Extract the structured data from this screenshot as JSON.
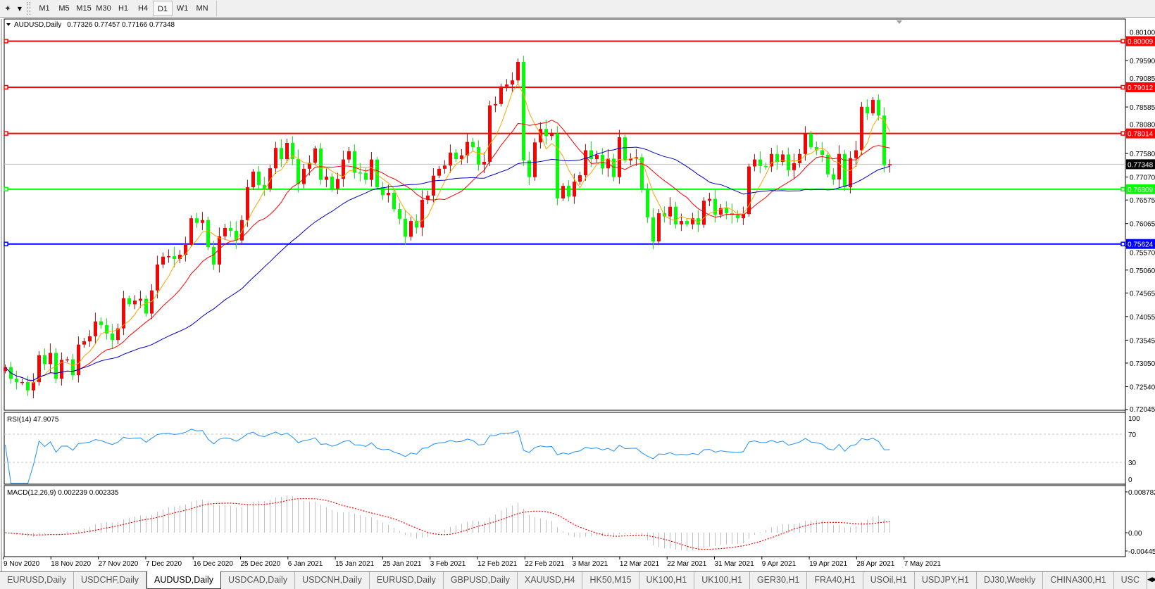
{
  "toolbar": {
    "timeframes": [
      "M1",
      "M5",
      "M15",
      "M30",
      "H1",
      "H4",
      "D1",
      "W1",
      "MN"
    ],
    "active_timeframe": "D1"
  },
  "chart": {
    "symbol_label": "AUDUSD,Daily",
    "ohlc_label": "0.77326 0.77457 0.77166 0.77348",
    "colors": {
      "bull": "#ff0000",
      "bear": "#00ff00",
      "ma_fast": "#ffa500",
      "ma_mid": "#ff0000",
      "ma_slow": "#0000cd",
      "current_price_line": "#c0c0c0"
    },
    "price_axis": [
      "0.80100",
      "0.79590",
      "0.79085",
      "0.78585",
      "0.78080",
      "0.77580",
      "0.77070",
      "0.76575",
      "0.76065",
      "0.75570",
      "0.75060",
      "0.74565",
      "0.74055",
      "0.73545",
      "0.73050",
      "0.72540",
      "0.72045"
    ],
    "levels": [
      {
        "price": "0.80009",
        "color": "#ff0000"
      },
      {
        "price": "0.79012",
        "color": "#ff0000"
      },
      {
        "price": "0.78014",
        "color": "#ff0000"
      },
      {
        "price": "0.76809",
        "color": "#00ff00"
      },
      {
        "price": "0.75624",
        "color": "#0000ff"
      }
    ],
    "current_price": "0.77348"
  },
  "chart_data": {
    "type": "candlestick",
    "last_bar": {
      "open": 0.77326,
      "high": 0.77457,
      "low": 0.77166,
      "close": 0.77348
    },
    "close": [
      0.7296,
      0.7271,
      0.7264,
      0.7264,
      0.7246,
      0.7264,
      0.7322,
      0.7303,
      0.7327,
      0.7271,
      0.7312,
      0.7313,
      0.7279,
      0.7345,
      0.7352,
      0.7363,
      0.7395,
      0.7387,
      0.7369,
      0.7355,
      0.738,
      0.7445,
      0.7432,
      0.744,
      0.7444,
      0.7412,
      0.7462,
      0.7518,
      0.7535,
      0.7536,
      0.753,
      0.7539,
      0.7562,
      0.7618,
      0.7608,
      0.7614,
      0.7556,
      0.7518,
      0.7579,
      0.7597,
      0.7591,
      0.757,
      0.7614,
      0.7685,
      0.7719,
      0.769,
      0.7682,
      0.7726,
      0.777,
      0.7746,
      0.7781,
      0.7746,
      0.7692,
      0.7725,
      0.7738,
      0.7769,
      0.7701,
      0.7708,
      0.7682,
      0.7703,
      0.7745,
      0.7763,
      0.7717,
      0.7716,
      0.7701,
      0.7745,
      0.7685,
      0.7668,
      0.7673,
      0.7638,
      0.7617,
      0.7578,
      0.7612,
      0.7598,
      0.7658,
      0.7667,
      0.771,
      0.7725,
      0.7732,
      0.776,
      0.7746,
      0.7754,
      0.7783,
      0.7772,
      0.7734,
      0.774,
      0.7862,
      0.7865,
      0.7903,
      0.7907,
      0.7916,
      0.7956,
      0.7743,
      0.7707,
      0.7782,
      0.7811,
      0.7796,
      0.7801,
      0.7661,
      0.7688,
      0.7665,
      0.7697,
      0.7711,
      0.7765,
      0.7746,
      0.7755,
      0.7726,
      0.7747,
      0.7707,
      0.7793,
      0.7743,
      0.7747,
      0.775,
      0.768,
      0.762,
      0.7568,
      0.7629,
      0.7622,
      0.7643,
      0.7605,
      0.7612,
      0.7605,
      0.7618,
      0.7604,
      0.7656,
      0.766,
      0.7626,
      0.764,
      0.7629,
      0.7625,
      0.7618,
      0.7627,
      0.773,
      0.7745,
      0.7731,
      0.773,
      0.7757,
      0.774,
      0.7756,
      0.7722,
      0.7737,
      0.7757,
      0.7801,
      0.7772,
      0.7765,
      0.7755,
      0.7713,
      0.7702,
      0.7757,
      0.7685,
      0.7748,
      0.7765,
      0.7859,
      0.7845,
      0.7874,
      0.784,
      0.7733,
      0.77348
    ],
    "x_tick_labels": [
      "9 Nov 2020",
      "18 Nov 2020",
      "27 Nov 2020",
      "7 Dec 2020",
      "16 Dec 2020",
      "25 Dec 2020",
      "6 Jan 2021",
      "15 Jan 2021",
      "25 Jan 2021",
      "3 Feb 2021",
      "12 Feb 2021",
      "22 Feb 2021",
      "3 Mar 2021",
      "12 Mar 2021",
      "22 Mar 2021",
      "31 Mar 2021",
      "9 Apr 2021",
      "19 Apr 2021",
      "28 Apr 2021",
      "7 May 2021"
    ],
    "ylim": [
      0.72045,
      0.801
    ]
  },
  "rsi": {
    "label": "RSI(14) 47.9075",
    "axis": [
      "100",
      "70",
      "30",
      "0"
    ],
    "color": "#1e90ff"
  },
  "macd": {
    "label": "MACD(12,26,9) 0.002239 0.002335",
    "axis": [
      "0.008782",
      "0.00",
      "-0.00445"
    ],
    "histogram_color": "#c0c0c0",
    "signal_color": "#ff0000"
  },
  "tabs": {
    "items": [
      "EURUSD,Daily",
      "USDCHF,Daily",
      "AUDUSD,Daily",
      "USDCAD,Daily",
      "USDCNH,Daily",
      "EURUSD,Daily",
      "GBPUSD,Daily",
      "XAUUSD,H4",
      "HK50,M15",
      "UK100,H1",
      "UK100,H1",
      "GER30,H1",
      "FRA40,H1",
      "USOil,H1",
      "USDJPY,H1",
      "DJ30,Weekly",
      "CHINA300,H1",
      "USC"
    ],
    "active_index": 2
  }
}
